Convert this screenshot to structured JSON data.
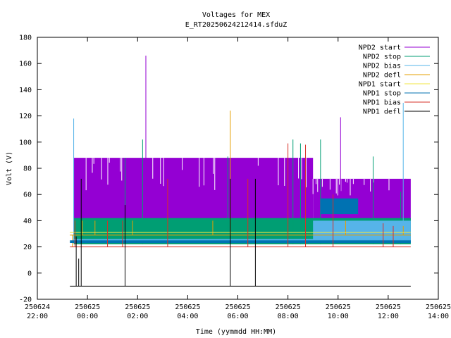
{
  "chart_data": {
    "type": "line",
    "title": "Voltages for MEX",
    "subtitle": "E_RT20250624212414.sfduZ",
    "xlabel": "Time (yymmdd HH:MM)",
    "ylabel": "Volt (V)",
    "xlim": [
      -2,
      14
    ],
    "ylim": [
      -20,
      180
    ],
    "xticks": [
      {
        "v": -2,
        "date": "250624",
        "time": "22:00"
      },
      {
        "v": 0,
        "date": "250625",
        "time": "00:00"
      },
      {
        "v": 2,
        "date": "250625",
        "time": "02:00"
      },
      {
        "v": 4,
        "date": "250625",
        "time": "04:00"
      },
      {
        "v": 6,
        "date": "250625",
        "time": "06:00"
      },
      {
        "v": 8,
        "date": "250625",
        "time": "08:00"
      },
      {
        "v": 10,
        "date": "250625",
        "time": "10:00"
      },
      {
        "v": 12,
        "date": "250625",
        "time": "12:00"
      },
      {
        "v": 14,
        "date": "250625",
        "time": "14:00"
      }
    ],
    "yticks": [
      -20,
      0,
      20,
      40,
      60,
      80,
      100,
      120,
      140,
      160,
      180
    ],
    "grid": false,
    "legend_position": "top-right",
    "time_range": [
      -0.7,
      12.9
    ],
    "series": [
      {
        "name": "NPD2 start",
        "color": "#9400d3",
        "bands": [
          {
            "t0": -0.55,
            "t1": 9.0,
            "lo": 26,
            "hi": 88
          },
          {
            "t0": 9.0,
            "t1": 12.9,
            "lo": 40,
            "hi": 72
          }
        ],
        "spikes": [
          {
            "t": 2.33,
            "v": 166
          },
          {
            "t": 10.1,
            "v": 119
          },
          {
            "t": 12.7,
            "v": 72
          }
        ]
      },
      {
        "name": "NPD2 stop",
        "color": "#009e73",
        "bands": [
          {
            "t0": -0.55,
            "t1": 12.9,
            "lo": 22,
            "hi": 42
          }
        ],
        "spikes": [
          {
            "t": -0.52,
            "v": 40
          },
          {
            "t": 1.5,
            "v": 88
          },
          {
            "t": 2.2,
            "v": 102
          },
          {
            "t": 5.6,
            "v": 89
          },
          {
            "t": 8.2,
            "v": 102
          },
          {
            "t": 8.5,
            "v": 99
          },
          {
            "t": 9.3,
            "v": 102
          },
          {
            "t": 11.4,
            "v": 89
          },
          {
            "t": 12.5,
            "v": 62
          }
        ]
      },
      {
        "name": "NPD2 bias",
        "color": "#56b4e9",
        "bands": [
          {
            "t0": -0.55,
            "t1": 12.9,
            "lo": 23,
            "hi": 26
          },
          {
            "t0": 9.0,
            "t1": 12.9,
            "lo": 26,
            "hi": 40
          }
        ],
        "spikes": [
          {
            "t": -0.55,
            "v": 118
          },
          {
            "t": 12.6,
            "v": 130
          }
        ]
      },
      {
        "name": "NPD2 defl",
        "color": "#e69f00",
        "bands": [],
        "levels": [
          {
            "v": 29
          }
        ],
        "spikes": [
          {
            "t": -0.6,
            "v": 20
          },
          {
            "t": -0.2,
            "v": 40
          },
          {
            "t": 0.3,
            "v": 40
          },
          {
            "t": 1.8,
            "v": 40
          },
          {
            "t": 5.0,
            "v": 40
          },
          {
            "t": 5.7,
            "v": 124
          },
          {
            "t": 10.3,
            "v": 40
          },
          {
            "t": 12.6,
            "v": 36
          }
        ]
      },
      {
        "name": "NPD1 start",
        "color": "#f0e442",
        "bands": [],
        "levels": [
          {
            "v": 31
          }
        ],
        "spikes": []
      },
      {
        "name": "NPD1 stop",
        "color": "#0072b2",
        "bands": [
          {
            "t0": -0.7,
            "t1": 12.9,
            "lo": 23,
            "hi": 25
          },
          {
            "t0": 9.3,
            "t1": 10.8,
            "lo": 45,
            "hi": 57
          }
        ],
        "spikes": []
      },
      {
        "name": "NPD1 bias",
        "color": "#d73027",
        "bands": [],
        "levels": [
          {
            "v": 20
          }
        ],
        "spikes": [
          {
            "t": -0.5,
            "v": 40
          },
          {
            "t": 0.8,
            "v": 40
          },
          {
            "t": 1.4,
            "v": 40
          },
          {
            "t": 3.2,
            "v": 72
          },
          {
            "t": 6.4,
            "v": 72
          },
          {
            "t": 8.0,
            "v": 99
          },
          {
            "t": 8.7,
            "v": 98
          },
          {
            "t": 9.8,
            "v": 60
          },
          {
            "t": 11.8,
            "v": 38
          },
          {
            "t": 12.2,
            "v": 36
          }
        ]
      },
      {
        "name": "NPD1 defl",
        "color": "#000000",
        "bands": [],
        "levels": [
          {
            "v": -10
          }
        ],
        "spikes": [
          {
            "t": -0.45,
            "v": 28
          },
          {
            "t": -0.35,
            "v": 11
          },
          {
            "t": -0.25,
            "v": 72
          },
          {
            "t": 1.5,
            "v": 52
          },
          {
            "t": 5.7,
            "v": 72
          },
          {
            "t": 6.7,
            "v": 72
          }
        ]
      }
    ]
  }
}
